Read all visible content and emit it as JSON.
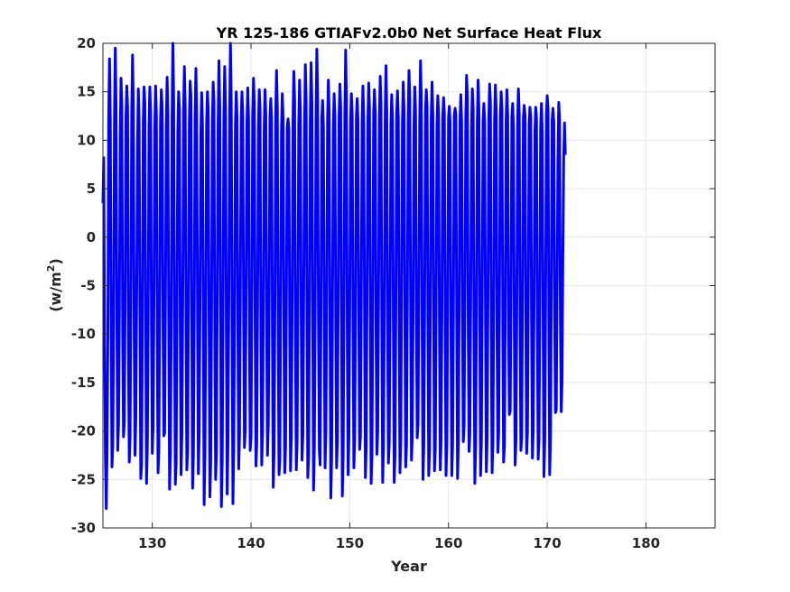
{
  "chart_data": {
    "type": "line",
    "title": "YR 125-186 GTIAFv2.0b0 Net Surface Heat Flux",
    "xlabel": "Year",
    "ylabel": "(w/m",
    "ylabel_superscript": "2",
    "ylabel_suffix": ")",
    "xlim": [
      125,
      187
    ],
    "ylim": [
      -30,
      20
    ],
    "xticks": [
      130,
      140,
      150,
      160,
      170,
      180
    ],
    "yticks": [
      -30,
      -25,
      -20,
      -15,
      -10,
      -5,
      0,
      5,
      10,
      15,
      20
    ],
    "grid": true,
    "series": [
      {
        "color": "#0000ff",
        "x_start": 125.0,
        "step": 0.083333,
        "values": [
          3.5,
          8.2,
          -10.8,
          -22.5,
          -28.0,
          -22.3,
          -10.0,
          12.3,
          18.4,
          12.0,
          -8.9,
          -23.7,
          -21.5,
          -8.5,
          12.1,
          19.5,
          13.5,
          -9.4,
          -22.0,
          -19.2,
          -7.3,
          10.5,
          16.4,
          13.6,
          -10.2,
          -20.6,
          -19.0,
          -6.7,
          12.4,
          15.6,
          13.4,
          -11.8,
          -23.2,
          -20.6,
          -7.5,
          13.0,
          18.8,
          13.1,
          -10.5,
          -22.5,
          -18.7,
          -6.9,
          9.2,
          15.3,
          11.9,
          -8.2,
          -24.9,
          -23.4,
          -8.9,
          12.0,
          15.5,
          13.8,
          -10.3,
          -25.4,
          -21.4,
          -8.4,
          11.5,
          15.5,
          12.8,
          -9.2,
          -22.3,
          -19.4,
          -6.8,
          11.3,
          15.6,
          12.7,
          -10.0,
          -24.3,
          -21.8,
          -7.9,
          12.1,
          15.2,
          13.4,
          -8.6,
          -20.5,
          -20.2,
          -6.3,
          11.4,
          16.5,
          12.7,
          -9.2,
          -26.0,
          -22.6,
          -9.5,
          12.1,
          20.0,
          14.2,
          -9.0,
          -25.5,
          -23.4,
          -7.9,
          11.0,
          15.0,
          13.2,
          -10.0,
          -24.5,
          -20.3,
          -7.1,
          13.0,
          17.6,
          13.4,
          -9.4,
          -24.0,
          -21.9,
          -7.5,
          11.9,
          16.1,
          14.5,
          -10.1,
          -25.9,
          -22.3,
          -8.8,
          12.1,
          17.4,
          12.7,
          -8.8,
          -24.4,
          -20.3,
          -6.3,
          10.7,
          14.9,
          11.6,
          -8.7,
          -27.6,
          -22.6,
          -7.9,
          11.6,
          15.0,
          13.2,
          -8.3,
          -26.8,
          -23.2,
          -8.5,
          11.9,
          16.0,
          14.0,
          -11.4,
          -25.0,
          -22.1,
          -6.9,
          11.8,
          18.2,
          13.5,
          -9.0,
          -27.8,
          -23.0,
          -8.3,
          12.4,
          17.6,
          13.2,
          -9.8,
          -26.5,
          -21.2,
          -6.8,
          12.8,
          20.0,
          13.5,
          -9.5,
          -27.5,
          -22.0,
          -7.8,
          11.6,
          15.0,
          12.5,
          -9.1,
          -23.9,
          -20.5,
          -6.2,
          12.0,
          15.0,
          12.6,
          -8.5,
          -21.7,
          -19.8,
          -6.0,
          11.8,
          15.4,
          12.3,
          -9.8,
          -22.0,
          -20.6,
          -7.4,
          12.4,
          16.4,
          13.8,
          -9.3,
          -23.6,
          -21.2,
          -6.6,
          11.4,
          15.2,
          13.1,
          -10.5,
          -23.5,
          -20.2,
          -7.1,
          11.3,
          15.2,
          12.6,
          -9.2,
          -22.5,
          -19.3,
          -6.8,
          12.4,
          14.3,
          12.2,
          -10.1,
          -25.8,
          -22.1,
          -8.2,
          12.8,
          17.2,
          13.3,
          -9.7,
          -24.5,
          -23.0,
          -7.3,
          11.0,
          14.8,
          12.1,
          -9.4,
          -24.3,
          -21.6,
          -7.1,
          11.3,
          12.2,
          11.2,
          -9.3,
          -24.1,
          -20.7,
          -7.0,
          12.0,
          17.1,
          14.1,
          -10.8,
          -24.0,
          -21.3,
          -7.2,
          11.6,
          16.2,
          13.2,
          -8.8,
          -23.0,
          -20.5,
          -6.9,
          11.1,
          17.8,
          14.0,
          -9.3,
          -24.8,
          -22.6,
          -8.0,
          12.1,
          18.0,
          13.9,
          -9.2,
          -26.1,
          -21.5,
          -7.6,
          11.9,
          19.4,
          14.1,
          -9.6,
          -22.0,
          -23.5,
          -7.5,
          12.3,
          14.1,
          11.3,
          -8.5,
          -23.8,
          -20.3,
          -6.6,
          11.8,
          16.2,
          12.9,
          -9.6,
          -26.9,
          -22.7,
          -8.0,
          11.3,
          14.8,
          12.5,
          -9.9,
          -23.8,
          -21.0,
          -6.9,
          12.4,
          15.8,
          13.4,
          -9.1,
          -26.7,
          -22.4,
          -7.6,
          12.4,
          19.3,
          14.0,
          -10.8,
          -24.5,
          -20.6,
          -7.0,
          12.0,
          14.8,
          12.5,
          -9.8,
          -23.8,
          -21.1,
          -7.3,
          12.3,
          14.3,
          12.1,
          -9.0,
          -21.9,
          -20.6,
          -6.8,
          11.9,
          15.6,
          12.4,
          -9.0,
          -24.8,
          -21.7,
          -6.5,
          11.8,
          15.9,
          13.3,
          -9.4,
          -25.4,
          -22.6,
          -7.8,
          12.7,
          15.2,
          12.9,
          -10.6,
          -22.4,
          -20.1,
          -6.5,
          12.3,
          16.6,
          13.6,
          -9.7,
          -25.3,
          -21.6,
          -8.0,
          12.1,
          17.7,
          13.1,
          -9.3,
          -23.3,
          -21.2,
          -7.1,
          11.6,
          14.7,
          12.1,
          -9.1,
          -25.3,
          -22.5,
          -8.1,
          12.8,
          15.1,
          12.4,
          -8.9,
          -24.3,
          -21.1,
          -6.8,
          11.9,
          16.0,
          13.2,
          -9.2,
          -23.7,
          -21.4,
          -7.3,
          12.3,
          17.2,
          14.1,
          -8.6,
          -23.0,
          -20.8,
          -7.0,
          11.5,
          15.5,
          12.9,
          -8.8,
          -20.7,
          -19.2,
          -6.0,
          12.0,
          18.2,
          14.3,
          -9.5,
          -25.0,
          -21.6,
          -7.8,
          12.8,
          15.2,
          13.4,
          -9.1,
          -24.6,
          -21.8,
          -7.6,
          12.3,
          16.0,
          12.7,
          -9.4,
          -24.1,
          -21.7,
          -7.0,
          11.7,
          14.6,
          12.8,
          -9.9,
          -24.0,
          -21.2,
          -7.9,
          12.3,
          14.4,
          12.8,
          -9.6,
          -24.6,
          -21.5,
          -7.5,
          12.3,
          13.5,
          11.9,
          -9.4,
          -24.6,
          -21.5,
          -7.5,
          12.5,
          13.3,
          12.7,
          -9.0,
          -24.9,
          -21.2,
          -7.6,
          12.0,
          14.7,
          11.8,
          -8.6,
          -21.1,
          -19.4,
          -6.6,
          12.3,
          16.7,
          14.4,
          -9.8,
          -22.1,
          -20.3,
          -6.9,
          11.3,
          15.3,
          13.2,
          -9.8,
          -25.4,
          -21.7,
          -8.0,
          11.9,
          16.2,
          13.1,
          -9.0,
          -24.6,
          -21.2,
          -6.4,
          12.1,
          13.8,
          12.0,
          -9.0,
          -24.2,
          -20.7,
          -6.4,
          12.2,
          15.8,
          13.9,
          -10.2,
          -24.3,
          -21.2,
          -7.6,
          12.1,
          15.7,
          13.1,
          -10.3,
          -22.2,
          -20.2,
          -6.0,
          12.4,
          15.0,
          13.2,
          -9.2,
          -23.2,
          -21.5,
          -7.7,
          12.0,
          15.2,
          12.5,
          -9.8,
          -18.3,
          -18.0,
          -6.2,
          12.4,
          13.8,
          11.2,
          -9.5,
          -23.5,
          -21.0,
          -7.8,
          12.0,
          15.3,
          12.7,
          -9.8,
          -22.0,
          -20.6,
          -6.4,
          12.3,
          13.6,
          12.6,
          -9.2,
          -22.3,
          -20.0,
          -6.6,
          11.7,
          13.4,
          12.3,
          -9.4,
          -22.8,
          -19.9,
          -6.5,
          10.8,
          13.4,
          12.3,
          -9.2,
          -22.9,
          -21.0,
          -7.0,
          11.4,
          13.8,
          10.9,
          -8.5,
          -24.7,
          -21.2,
          -6.9,
          12.6,
          14.6,
          13.2,
          -8.9,
          -24.5,
          -20.6,
          -6.3,
          12.1,
          13.3,
          11.9,
          -8.2,
          -18.1,
          -17.8,
          -5.5,
          7.8,
          13.9,
          12.2,
          -8.7,
          -18.0,
          -15.0,
          -2.0,
          8.0,
          11.8,
          8.5
        ]
      }
    ]
  }
}
